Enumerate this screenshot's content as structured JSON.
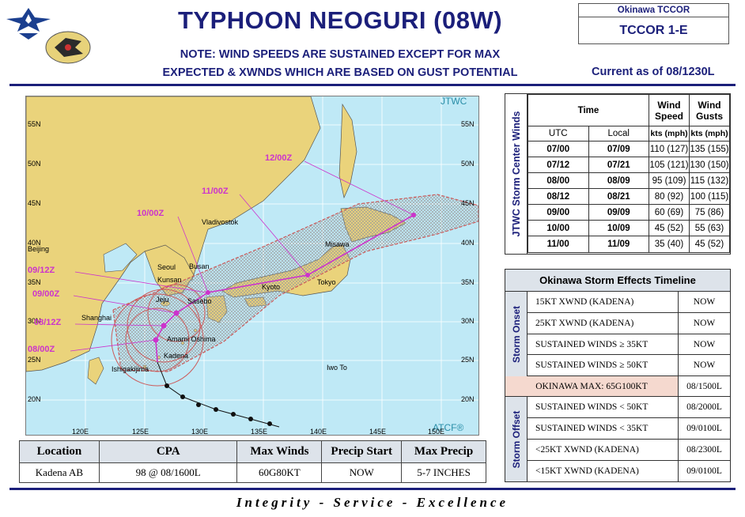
{
  "header": {
    "title": "TYPHOON NEOGURI (08W)",
    "note_line1": "NOTE: WIND SPEEDS ARE SUSTAINED EXCEPT FOR MAX",
    "note_line2": "EXPECTED & XWNDS WHICH ARE BASED ON GUST POTENTIAL",
    "org": "Okinawa TCCOR",
    "tccor_level": "TCCOR 1-E",
    "current_as_of": "Current as of 08/1230L"
  },
  "logos": [
    "air-force-emblem",
    "wing-crest"
  ],
  "map": {
    "agency_top": "JTWC",
    "agency_bottom": "ATCF®",
    "lat_labels": [
      "55N",
      "50N",
      "45N",
      "40N",
      "35N",
      "30N",
      "25N",
      "20N"
    ],
    "lon_labels": [
      "120E",
      "125E",
      "130E",
      "135E",
      "140E",
      "145E",
      "150E"
    ],
    "places": [
      "Vladivostok",
      "Beijing",
      "Seoul",
      "Kunsan",
      "Busan",
      "Jeju",
      "Sasebo",
      "Shanghai",
      "Amami Oshima",
      "Kadena",
      "Ishigakijima",
      "Iwo To",
      "Misawa",
      "Kyoto",
      "Tokyo"
    ],
    "forecast_labels": [
      "12/00Z",
      "11/00Z",
      "10/00Z",
      "09/12Z",
      "09/00Z",
      "08/12Z",
      "08/00Z"
    ],
    "colors": {
      "sea": "#bfe9f6",
      "land": "#ead37b",
      "track": "#cc33cc",
      "danger": "#cc5a5a"
    }
  },
  "location_table": {
    "headers": [
      "Location",
      "CPA",
      "Max Winds",
      "Precip Start",
      "Max Precip"
    ],
    "row": [
      "Kadena AB",
      "98 @ 08/1600L",
      "60G80KT",
      "NOW",
      "5-7 INCHES"
    ]
  },
  "storm_center": {
    "side_label": "JTWC Storm Center Winds",
    "h_time": "Time",
    "h_wind_speed": "Wind Speed",
    "h_wind_gusts": "Wind Gusts",
    "h_utc": "UTC",
    "h_local": "Local",
    "h_kts1": "kts (mph)",
    "h_kts2": "kts (mph)",
    "rows": [
      {
        "utc": "07/00",
        "local": "07/09",
        "speed": "110 (127)",
        "gust": "135 (155)"
      },
      {
        "utc": "07/12",
        "local": "07/21",
        "speed": "105 (121)",
        "gust": "130 (150)"
      },
      {
        "utc": "08/00",
        "local": "08/09",
        "speed": "95 (109)",
        "gust": "115 (132)"
      },
      {
        "utc": "08/12",
        "local": "08/21",
        "speed": "80 (92)",
        "gust": "100 (115)"
      },
      {
        "utc": "09/00",
        "local": "09/09",
        "speed": "60 (69)",
        "gust": "75 (86)"
      },
      {
        "utc": "10/00",
        "local": "10/09",
        "speed": "45 (52)",
        "gust": "55 (63)"
      },
      {
        "utc": "11/00",
        "local": "11/09",
        "speed": "35 (40)",
        "gust": "45 (52)"
      }
    ]
  },
  "effects": {
    "title": "Okinawa Storm Effects Timeline",
    "onset_label": "Storm Onset",
    "offset_label": "Storm Offset",
    "onset": [
      {
        "event": "15KT XWND (KADENA)",
        "time": "NOW"
      },
      {
        "event": "25KT XWND (KADENA)",
        "time": "NOW"
      },
      {
        "event": "SUSTAINED WINDS ≥ 35KT",
        "time": "NOW"
      },
      {
        "event": "SUSTAINED WINDS ≥ 50KT",
        "time": "NOW"
      }
    ],
    "max": {
      "event": "OKINAWA MAX: 65G100KT",
      "time": "08/1500L"
    },
    "offset": [
      {
        "event": "SUSTAINED WINDS < 50KT",
        "time": "08/2000L"
      },
      {
        "event": "SUSTAINED WINDS < 35KT",
        "time": "09/0100L"
      },
      {
        "event": "<25KT XWND (KADENA)",
        "time": "08/2300L"
      },
      {
        "event": "<15KT XWND (KADENA)",
        "time": "09/0100L"
      }
    ]
  },
  "footer": {
    "motto": "Integrity - Service - Excellence"
  }
}
